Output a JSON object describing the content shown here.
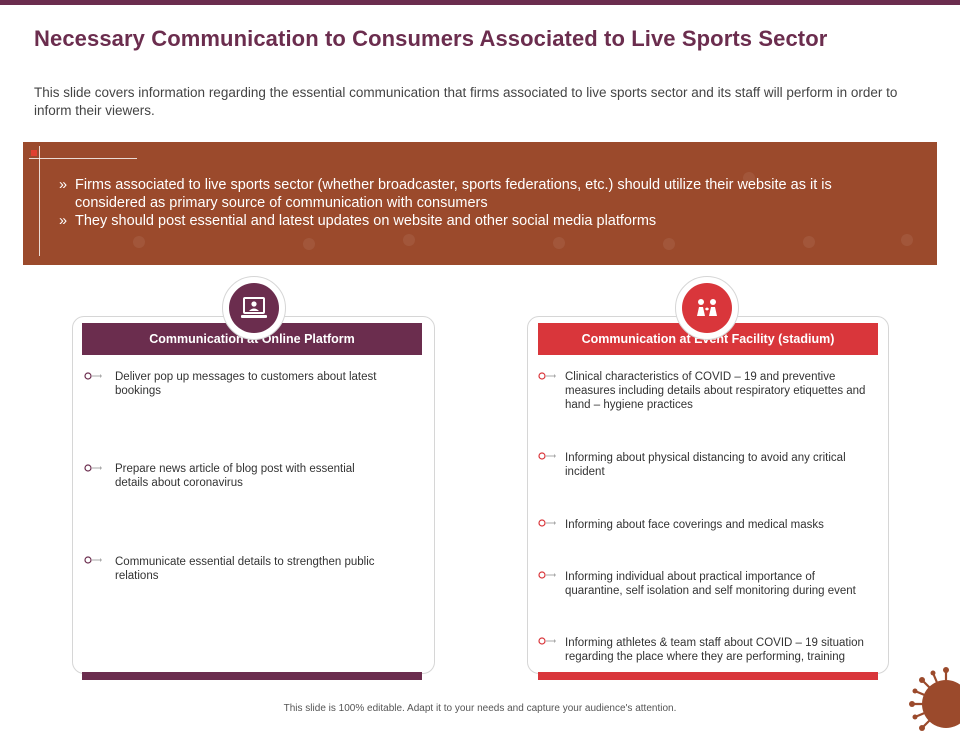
{
  "title": "Necessary Communication to Consumers Associated to Live Sports Sector",
  "intro": "This slide covers information regarding the essential communication that firms associated to live sports sector and its staff will perform in order to inform their viewers.",
  "banner": {
    "bullet_mark": "»",
    "bullets": [
      "Firms associated to live sports sector (whether broadcaster, sports federations, etc.) should utilize their website as it is considered as primary source of communication with consumers",
      "They should post essential and latest updates on website and other social media platforms"
    ]
  },
  "colors": {
    "title": "#6b2d4e",
    "banner": "#9b4a2c",
    "left_accent": "#6b2d4e",
    "right_accent": "#d9363b"
  },
  "left_card": {
    "icon": "laptop-user-icon",
    "header": "Communication at Online Platform",
    "items": [
      "Deliver pop up messages to customers about latest bookings",
      "Prepare news article of blog post with essential details about coronavirus",
      "Communicate essential details to strengthen public relations"
    ]
  },
  "right_card": {
    "icon": "people-stadium-icon",
    "header": "Communication at Event Facility (stadium)",
    "items": [
      "Clinical characteristics of COVID – 19 and preventive measures including details about respiratory etiquettes and hand – hygiene practices",
      "Informing about physical distancing to avoid any critical incident",
      "Informing about face coverings and medical masks",
      "Informing individual about practical importance of quarantine, self isolation and self monitoring during event",
      "Informing athletes & team staff about COVID – 19 situation regarding the place where they are performing, training"
    ]
  },
  "footer": "This slide is 100% editable. Adapt it to your needs and capture your audience's attention."
}
